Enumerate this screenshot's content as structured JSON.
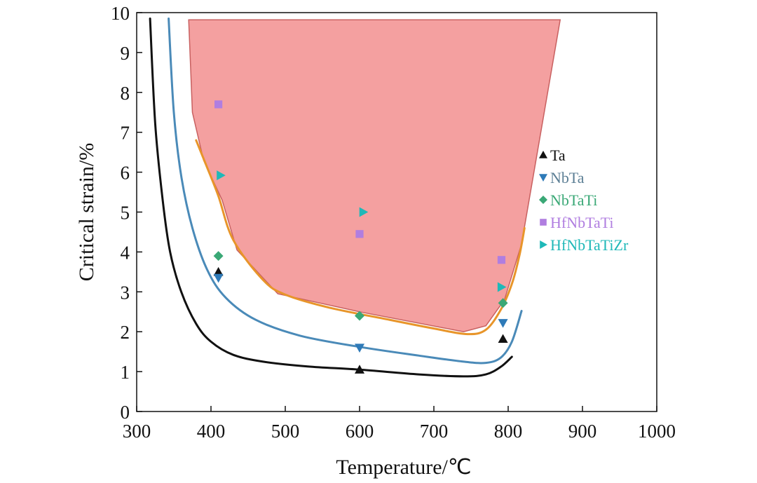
{
  "chart_data": {
    "type": "scatter",
    "title": "",
    "xlabel": "Temperature/℃",
    "ylabel": "Critical strain/%",
    "xlim": [
      300,
      1000
    ],
    "ylim": [
      0,
      10
    ],
    "x_ticks": [
      "300",
      "400",
      "500",
      "600",
      "700",
      "800",
      "900",
      "1000"
    ],
    "y_ticks": [
      "0",
      "1",
      "2",
      "3",
      "4",
      "5",
      "6",
      "7",
      "8",
      "9",
      "10"
    ],
    "legend_position": "right",
    "shaded_region": {
      "color": "#f4a0a0",
      "boundary": [
        [
          370,
          9.82
        ],
        [
          375,
          7.5
        ],
        [
          390,
          6.3
        ],
        [
          415,
          5.3
        ],
        [
          435,
          4.05
        ],
        [
          490,
          2.95
        ],
        [
          600,
          2.5
        ],
        [
          740,
          2.0
        ],
        [
          770,
          2.15
        ],
        [
          795,
          2.8
        ],
        [
          818,
          4.2
        ],
        [
          870,
          9.82
        ]
      ]
    },
    "curves": [
      {
        "name": "Ta trend",
        "color": "#111111",
        "points": [
          [
            318,
            9.85
          ],
          [
            325,
            7.2
          ],
          [
            335,
            5.3
          ],
          [
            345,
            4.0
          ],
          [
            360,
            3.0
          ],
          [
            380,
            2.2
          ],
          [
            400,
            1.75
          ],
          [
            430,
            1.42
          ],
          [
            470,
            1.25
          ],
          [
            530,
            1.13
          ],
          [
            600,
            1.05
          ],
          [
            680,
            0.93
          ],
          [
            740,
            0.88
          ],
          [
            770,
            0.93
          ],
          [
            790,
            1.12
          ],
          [
            805,
            1.37
          ]
        ]
      },
      {
        "name": "NbTa trend",
        "color": "#4a8ab8",
        "points": [
          [
            343,
            9.85
          ],
          [
            350,
            7.5
          ],
          [
            360,
            5.9
          ],
          [
            375,
            4.6
          ],
          [
            395,
            3.55
          ],
          [
            420,
            2.85
          ],
          [
            460,
            2.3
          ],
          [
            520,
            1.9
          ],
          [
            600,
            1.62
          ],
          [
            680,
            1.4
          ],
          [
            740,
            1.25
          ],
          [
            770,
            1.22
          ],
          [
            790,
            1.35
          ],
          [
            805,
            1.75
          ],
          [
            818,
            2.52
          ]
        ]
      },
      {
        "name": "Orange boundary",
        "color": "#e8952a",
        "points": [
          [
            380,
            6.8
          ],
          [
            393,
            6.2
          ],
          [
            410,
            5.4
          ],
          [
            430,
            4.3
          ],
          [
            470,
            3.3
          ],
          [
            500,
            2.93
          ],
          [
            560,
            2.6
          ],
          [
            640,
            2.3
          ],
          [
            700,
            2.08
          ],
          [
            745,
            1.94
          ],
          [
            770,
            2.05
          ],
          [
            790,
            2.55
          ],
          [
            805,
            3.2
          ],
          [
            815,
            3.9
          ],
          [
            822,
            4.6
          ]
        ]
      }
    ],
    "series": [
      {
        "name": "Ta",
        "marker": "triangle-up",
        "color": "#111111",
        "legend_color": "#111111",
        "points": [
          [
            410,
            3.5
          ],
          [
            600,
            1.05
          ],
          [
            793,
            1.82
          ]
        ]
      },
      {
        "name": "NbTa",
        "marker": "triangle-down",
        "color": "#2e7ab8",
        "legend_color": "#5c7f95",
        "points": [
          [
            410,
            3.35
          ],
          [
            600,
            1.6
          ],
          [
            793,
            2.22
          ]
        ]
      },
      {
        "name": "NbTaTi",
        "marker": "diamond",
        "color": "#3aa876",
        "legend_color": "#3aa876",
        "points": [
          [
            410,
            3.9
          ],
          [
            600,
            2.4
          ],
          [
            793,
            2.72
          ]
        ]
      },
      {
        "name": "HfNbTaTi",
        "marker": "square",
        "color": "#b07ee0",
        "legend_color": "#b07ee0",
        "points": [
          [
            410,
            7.7
          ],
          [
            600,
            4.45
          ],
          [
            791,
            3.8
          ]
        ]
      },
      {
        "name": "HfNbTaTiZr",
        "marker": "triangle-right",
        "color": "#1fb8b8",
        "legend_color": "#1fb8b8",
        "points": [
          [
            413,
            5.92
          ],
          [
            605,
            5.0
          ],
          [
            791,
            3.12
          ]
        ]
      }
    ]
  }
}
